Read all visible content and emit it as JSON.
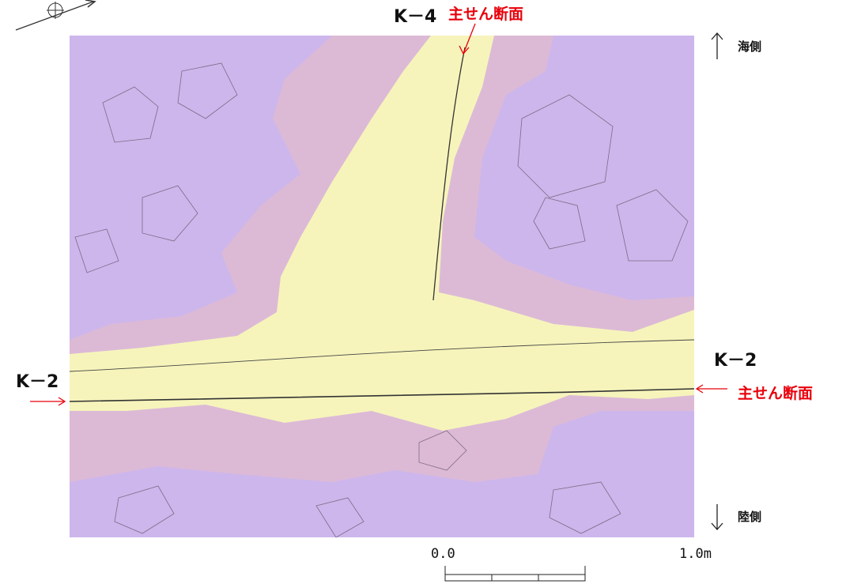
{
  "sections": {
    "top": "K－4",
    "left": "K－2",
    "right": "K－2"
  },
  "shear_labels": {
    "top": "主せん断面",
    "right": "主せん断面"
  },
  "sides": {
    "sea": "海側",
    "land": "陸側"
  },
  "scale_bar": {
    "start": "0.0",
    "end": "1.0m"
  }
}
